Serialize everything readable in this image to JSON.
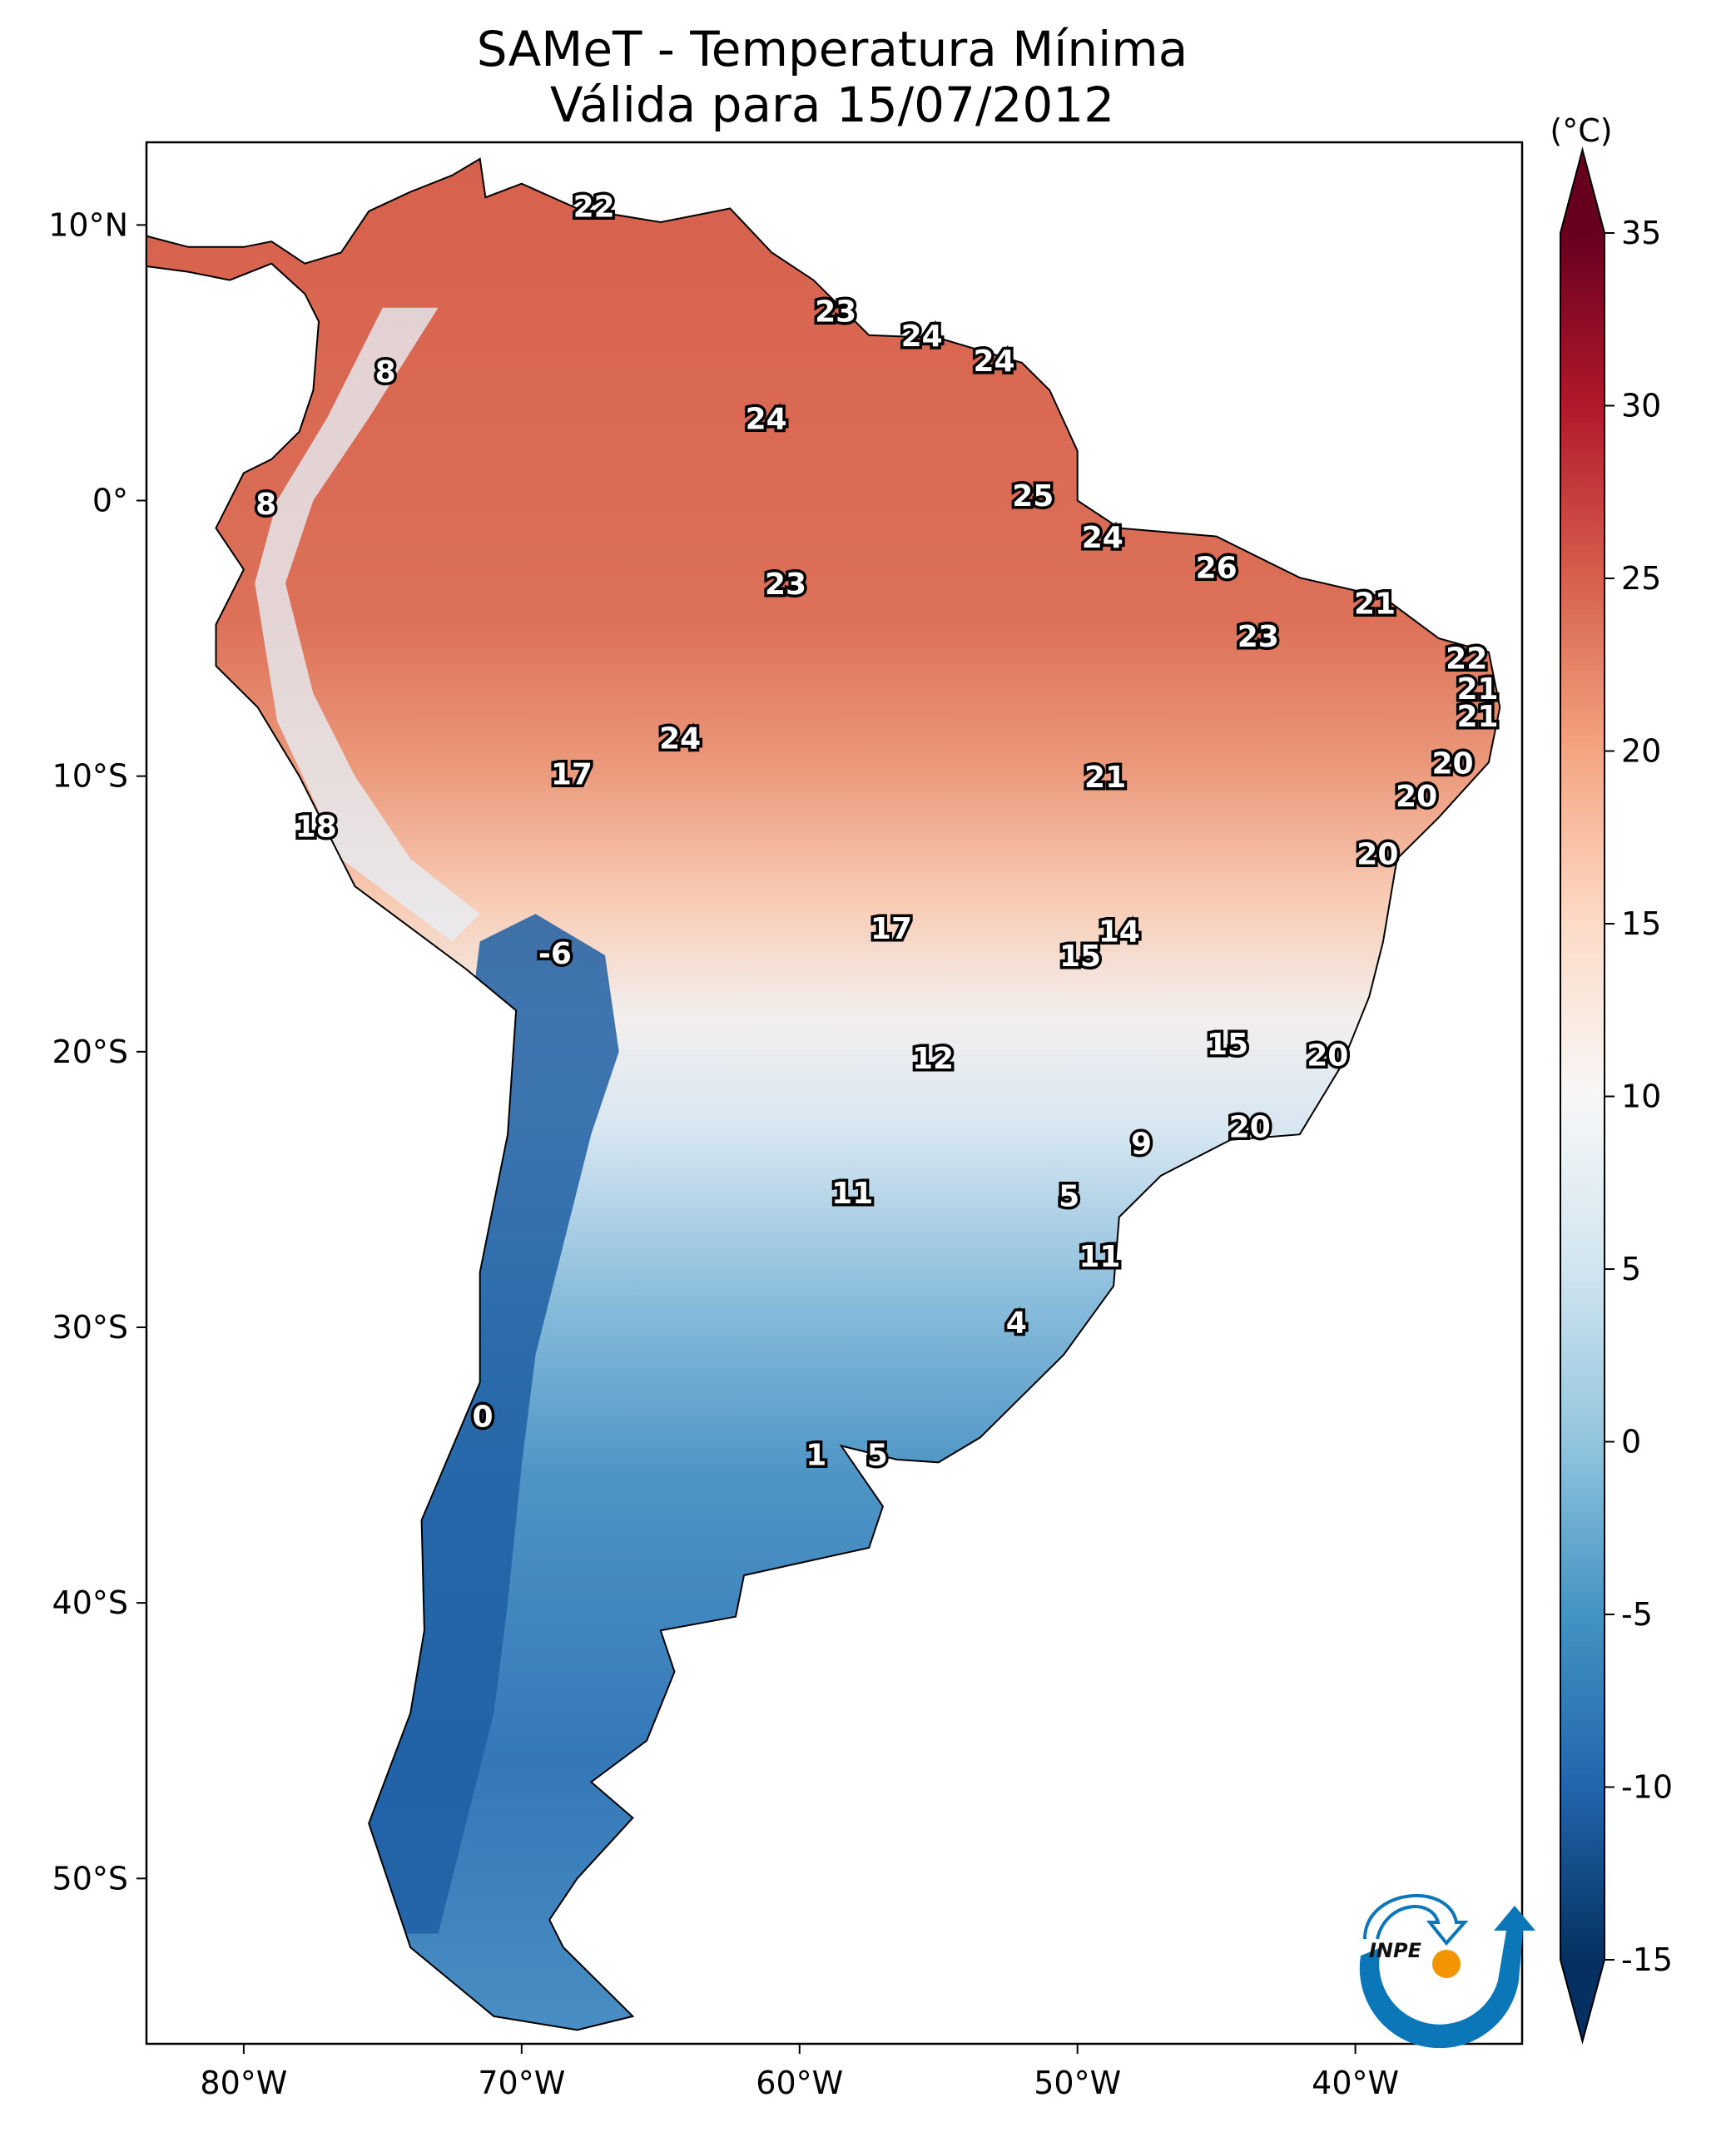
{
  "title": {
    "line1": "SAMeT - Temperatura Mínima",
    "line2": "Válida para 15/07/2012"
  },
  "colorbar": {
    "unit_label": "(°C)",
    "range": [
      -15,
      35
    ],
    "ticks": [
      "35",
      "30",
      "25",
      "20",
      "15",
      "10",
      "5",
      "0",
      "-5",
      "-10",
      "-15"
    ],
    "tick_values": [
      35,
      30,
      25,
      20,
      15,
      10,
      5,
      0,
      -5,
      -10,
      -15
    ],
    "colormap": "RdBu_r",
    "stops": [
      "#053061",
      "#2166ac",
      "#4393c3",
      "#92c5de",
      "#d1e5f0",
      "#f7f7f7",
      "#fddbc7",
      "#f4a582",
      "#d6604d",
      "#b2182b",
      "#67001f"
    ],
    "extend": "both"
  },
  "axes": {
    "lon_range": [
      -83.5,
      -34
    ],
    "lat_range": [
      -56,
      13
    ],
    "lon_ticks": [
      {
        "v": -80,
        "label": "80°W"
      },
      {
        "v": -70,
        "label": "70°W"
      },
      {
        "v": -60,
        "label": "60°W"
      },
      {
        "v": -50,
        "label": "50°W"
      },
      {
        "v": -40,
        "label": "40°W"
      }
    ],
    "lat_ticks": [
      {
        "v": 10,
        "label": "10°N"
      },
      {
        "v": 0,
        "label": "0°"
      },
      {
        "v": -10,
        "label": "10°S"
      },
      {
        "v": -20,
        "label": "20°S"
      },
      {
        "v": -30,
        "label": "30°S"
      },
      {
        "v": -40,
        "label": "40°S"
      },
      {
        "v": -50,
        "label": "50°S"
      }
    ]
  },
  "station_labels": [
    {
      "t": "22",
      "lon": -67.4,
      "lat": 10.6
    },
    {
      "t": "23",
      "lon": -58.7,
      "lat": 6.8
    },
    {
      "t": "24",
      "lon": -55.6,
      "lat": 5.9
    },
    {
      "t": "24",
      "lon": -53.0,
      "lat": 5.0
    },
    {
      "t": "8",
      "lon": -74.9,
      "lat": 4.6
    },
    {
      "t": "24",
      "lon": -61.2,
      "lat": 2.9
    },
    {
      "t": "8",
      "lon": -79.2,
      "lat": -0.2
    },
    {
      "t": "25",
      "lon": -51.6,
      "lat": 0.1
    },
    {
      "t": "24",
      "lon": -49.1,
      "lat": -1.4
    },
    {
      "t": "23",
      "lon": -60.5,
      "lat": -3.1
    },
    {
      "t": "26",
      "lon": -45.0,
      "lat": -2.5
    },
    {
      "t": "21",
      "lon": -39.3,
      "lat": -3.8
    },
    {
      "t": "23",
      "lon": -43.5,
      "lat": -5.0
    },
    {
      "t": "22",
      "lon": -36.0,
      "lat": -5.8
    },
    {
      "t": "21",
      "lon": -35.6,
      "lat": -6.9
    },
    {
      "t": "21",
      "lon": -35.6,
      "lat": -7.9
    },
    {
      "t": "24",
      "lon": -64.3,
      "lat": -8.7
    },
    {
      "t": "20",
      "lon": -36.5,
      "lat": -9.6
    },
    {
      "t": "17",
      "lon": -68.2,
      "lat": -10.0
    },
    {
      "t": "21",
      "lon": -49.0,
      "lat": -10.1
    },
    {
      "t": "20",
      "lon": -37.8,
      "lat": -10.8
    },
    {
      "t": "18",
      "lon": -77.4,
      "lat": -11.9
    },
    {
      "t": "20",
      "lon": -39.2,
      "lat": -12.9
    },
    {
      "t": "17",
      "lon": -56.7,
      "lat": -15.6
    },
    {
      "t": "14",
      "lon": -48.5,
      "lat": -15.7
    },
    {
      "t": "15",
      "lon": -49.9,
      "lat": -16.6
    },
    {
      "t": "-6",
      "lon": -68.8,
      "lat": -16.5
    },
    {
      "t": "15",
      "lon": -44.6,
      "lat": -19.8
    },
    {
      "t": "20",
      "lon": -41.0,
      "lat": -20.2
    },
    {
      "t": "12",
      "lon": -55.2,
      "lat": -20.3
    },
    {
      "t": "20",
      "lon": -43.8,
      "lat": -22.8
    },
    {
      "t": "9",
      "lon": -47.7,
      "lat": -23.4
    },
    {
      "t": "11",
      "lon": -58.1,
      "lat": -25.2
    },
    {
      "t": "5",
      "lon": -50.3,
      "lat": -25.3
    },
    {
      "t": "11",
      "lon": -49.2,
      "lat": -27.5
    },
    {
      "t": "4",
      "lon": -52.2,
      "lat": -29.9
    },
    {
      "t": "0",
      "lon": -71.4,
      "lat": -33.3
    },
    {
      "t": "1",
      "lon": -59.4,
      "lat": -34.7
    },
    {
      "t": "5",
      "lon": -57.2,
      "lat": -34.7
    }
  ],
  "logo": {
    "text": "INPE"
  }
}
